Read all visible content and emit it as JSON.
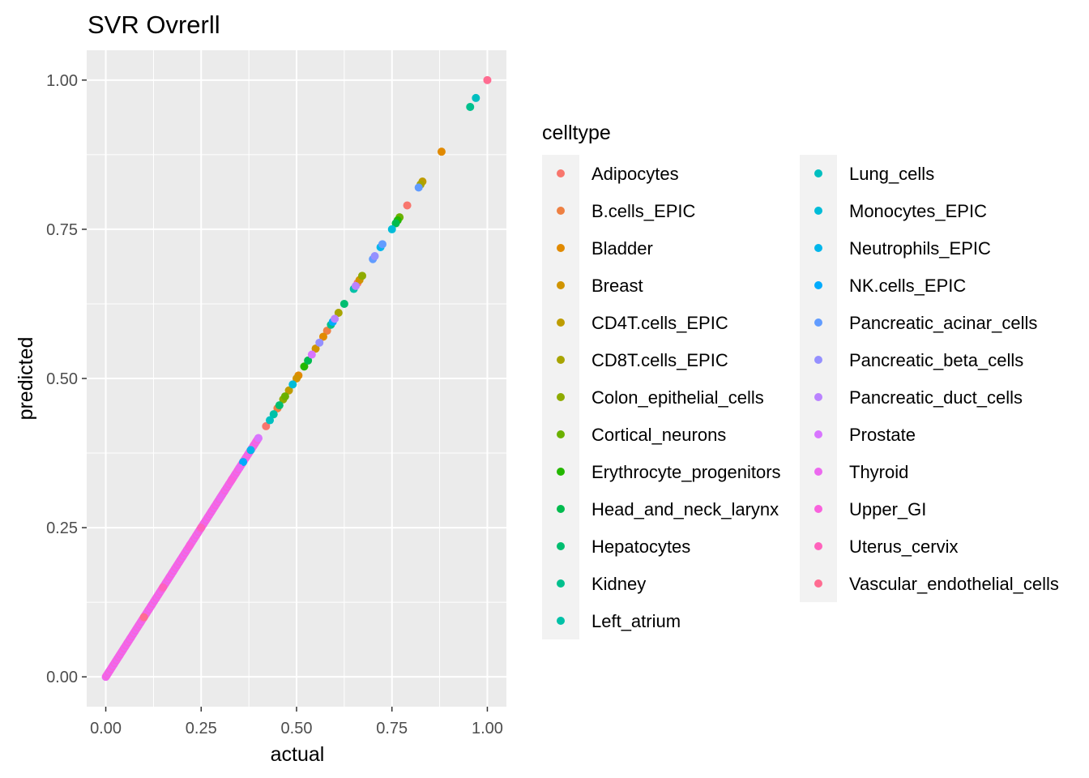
{
  "chart_data": {
    "type": "scatter",
    "title": "SVR Ovrerll",
    "xlabel": "actual",
    "ylabel": "predicted",
    "xlim": [
      -0.05,
      1.05
    ],
    "ylim": [
      -0.05,
      1.05
    ],
    "x_ticks": [
      0.0,
      0.25,
      0.5,
      0.75,
      1.0
    ],
    "y_ticks": [
      0.0,
      0.25,
      0.5,
      0.75,
      1.0
    ],
    "x_tick_labels": [
      "0.00",
      "0.25",
      "0.50",
      "0.75",
      "1.00"
    ],
    "y_tick_labels": [
      "0.00",
      "0.25",
      "0.50",
      "0.75",
      "1.00"
    ],
    "grid": true,
    "panel_background": "#ebebeb",
    "legend": {
      "title": "celltype",
      "placement": "right",
      "columns": 2,
      "entries": [
        {
          "name": "Adipocytes",
          "color": "#F8766D"
        },
        {
          "name": "B.cells_EPIC",
          "color": "#EE8042"
        },
        {
          "name": "Bladder",
          "color": "#E18A00"
        },
        {
          "name": "Breast",
          "color": "#D09400"
        },
        {
          "name": "CD4T.cells_EPIC",
          "color": "#BE9C00"
        },
        {
          "name": "CD8T.cells_EPIC",
          "color": "#A8A400"
        },
        {
          "name": "Colon_epithelial_cells",
          "color": "#8EAB00"
        },
        {
          "name": "Cortical_neurons",
          "color": "#6BB100"
        },
        {
          "name": "Erythrocyte_progenitors",
          "color": "#24B700"
        },
        {
          "name": "Head_and_neck_larynx",
          "color": "#00BB4E"
        },
        {
          "name": "Hepatocytes",
          "color": "#00BE70"
        },
        {
          "name": "Kidney",
          "color": "#00C08D"
        },
        {
          "name": "Left_atrium",
          "color": "#00C1A7"
        },
        {
          "name": "Lung_cells",
          "color": "#00BFC0"
        },
        {
          "name": "Monocytes_EPIC",
          "color": "#00BCD8"
        },
        {
          "name": "Neutrophils_EPIC",
          "color": "#00B6EB"
        },
        {
          "name": "NK.cells_EPIC",
          "color": "#00ABFD"
        },
        {
          "name": "Pancreatic_acinar_cells",
          "color": "#619CFF"
        },
        {
          "name": "Pancreatic_beta_cells",
          "color": "#9590FF"
        },
        {
          "name": "Pancreatic_duct_cells",
          "color": "#BA83FF"
        },
        {
          "name": "Prostate",
          "color": "#D875FF"
        },
        {
          "name": "Thyroid",
          "color": "#EC69EF"
        },
        {
          "name": "Upper_GI",
          "color": "#F962DD"
        },
        {
          "name": "Uterus_cervix",
          "color": "#FF62BC"
        },
        {
          "name": "Vascular_endothelial_cells",
          "color": "#FF6C91"
        }
      ]
    },
    "series": [
      {
        "name": "Adipocytes",
        "points": [
          [
            0.79,
            0.79
          ],
          [
            0.42,
            0.42
          ],
          [
            0.66,
            0.66
          ]
        ]
      },
      {
        "name": "B.cells_EPIC",
        "points": [
          [
            0.58,
            0.58
          ],
          [
            0.45,
            0.45
          ]
        ]
      },
      {
        "name": "Bladder",
        "points": [
          [
            0.88,
            0.88
          ],
          [
            0.57,
            0.57
          ],
          [
            0.505,
            0.505
          ]
        ]
      },
      {
        "name": "Breast",
        "points": [
          [
            0.665,
            0.665
          ],
          [
            0.5,
            0.5
          ],
          [
            0.55,
            0.55
          ]
        ]
      },
      {
        "name": "CD4T.cells_EPIC",
        "points": [
          [
            0.83,
            0.83
          ],
          [
            0.48,
            0.48
          ]
        ]
      },
      {
        "name": "CD8T.cells_EPIC",
        "points": [
          [
            0.825,
            0.825
          ],
          [
            0.61,
            0.61
          ]
        ]
      },
      {
        "name": "Colon_epithelial_cells",
        "points": [
          [
            0.672,
            0.672
          ],
          [
            0.465,
            0.465
          ]
        ]
      },
      {
        "name": "Cortical_neurons",
        "points": [
          [
            0.77,
            0.77
          ],
          [
            0.47,
            0.47
          ]
        ]
      },
      {
        "name": "Erythrocyte_progenitors",
        "points": [
          [
            0.765,
            0.765
          ],
          [
            0.52,
            0.52
          ]
        ]
      },
      {
        "name": "Head_and_neck_larynx",
        "points": [
          [
            0.76,
            0.76
          ],
          [
            0.53,
            0.53
          ]
        ]
      },
      {
        "name": "Hepatocytes",
        "points": [
          [
            0.625,
            0.625
          ],
          [
            0.455,
            0.455
          ]
        ]
      },
      {
        "name": "Kidney",
        "points": [
          [
            0.955,
            0.955
          ],
          [
            0.59,
            0.59
          ]
        ]
      },
      {
        "name": "Left_atrium",
        "points": [
          [
            0.65,
            0.65
          ],
          [
            0.44,
            0.44
          ]
        ]
      },
      {
        "name": "Lung_cells",
        "points": [
          [
            0.97,
            0.97
          ],
          [
            0.43,
            0.43
          ]
        ]
      },
      {
        "name": "Monocytes_EPIC",
        "points": [
          [
            0.75,
            0.75
          ],
          [
            0.49,
            0.49
          ]
        ]
      },
      {
        "name": "Neutrophils_EPIC",
        "points": [
          [
            0.72,
            0.72
          ],
          [
            0.38,
            0.38
          ]
        ]
      },
      {
        "name": "NK.cells_EPIC",
        "points": [
          [
            0.595,
            0.595
          ],
          [
            0.36,
            0.36
          ]
        ]
      },
      {
        "name": "Pancreatic_acinar_cells",
        "points": [
          [
            0.82,
            0.82
          ],
          [
            0.7,
            0.7
          ],
          [
            0.725,
            0.725
          ]
        ]
      },
      {
        "name": "Pancreatic_beta_cells",
        "points": [
          [
            0.705,
            0.705
          ],
          [
            0.56,
            0.56
          ]
        ]
      },
      {
        "name": "Pancreatic_duct_cells",
        "points": [
          [
            0.655,
            0.655
          ],
          [
            0.6,
            0.6
          ]
        ]
      },
      {
        "name": "Prostate",
        "points": [
          [
            0.54,
            0.54
          ],
          [
            0.4,
            0.4
          ]
        ]
      },
      {
        "name": "Thyroid",
        "points": [
          [
            0.35,
            0.35
          ],
          [
            0.3,
            0.3
          ]
        ]
      },
      {
        "name": "Upper_GI",
        "points": [
          [
            0.33,
            0.33
          ],
          [
            0.22,
            0.22
          ]
        ]
      },
      {
        "name": "Uterus_cervix",
        "points": [
          [
            0.25,
            0.25
          ],
          [
            0.15,
            0.15
          ]
        ]
      },
      {
        "name": "Vascular_endothelial_cells",
        "points": [
          [
            1.0,
            1.0
          ],
          [
            0.1,
            0.1
          ]
        ]
      }
    ],
    "dense_diagonal": {
      "series": "Thyroid",
      "from": 0.0,
      "to": 0.4,
      "step": 0.0025,
      "note_color_series": "Upper_GI"
    }
  }
}
